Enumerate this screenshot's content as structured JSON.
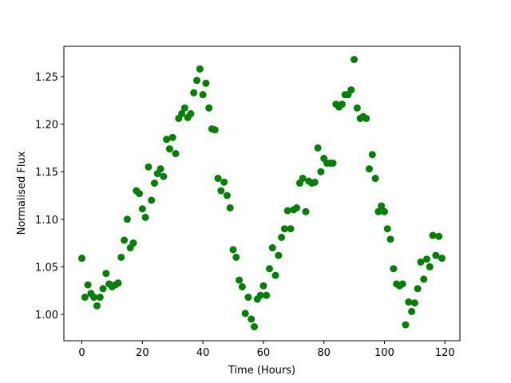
{
  "chart_data": {
    "type": "scatter",
    "xlabel": "Time (Hours)",
    "ylabel": "Normalised Flux",
    "color": "#008000",
    "x": [
      0,
      1,
      2,
      3,
      4,
      5,
      6,
      7,
      8,
      9,
      10,
      11,
      12,
      13,
      14,
      15,
      16,
      17,
      18,
      19,
      20,
      21,
      22,
      23,
      24,
      25,
      26,
      27,
      28,
      29,
      30,
      31,
      32,
      33,
      34,
      35,
      36,
      37,
      38,
      39,
      40,
      41,
      42,
      43,
      44,
      45,
      46,
      47,
      48,
      49,
      50,
      51,
      52,
      53,
      54,
      55,
      56,
      57,
      58,
      59,
      60,
      61,
      62,
      63,
      64,
      65,
      66,
      67,
      68,
      69,
      70,
      71,
      72,
      73,
      74,
      75,
      76,
      77,
      78,
      79,
      80,
      81,
      82,
      83,
      84,
      85,
      86,
      87,
      88,
      89,
      90,
      91,
      92,
      93,
      94,
      95,
      96,
      97,
      98,
      99,
      100,
      101,
      102,
      103,
      104,
      105,
      106,
      107,
      108,
      109,
      110,
      111,
      112,
      113,
      114,
      115,
      116,
      117,
      118,
      119
    ],
    "values": [
      1.059,
      1.018,
      1.031,
      1.022,
      1.018,
      1.009,
      1.018,
      1.027,
      1.043,
      1.032,
      1.029,
      1.031,
      1.033,
      1.06,
      1.078,
      1.1,
      1.07,
      1.075,
      1.13,
      1.127,
      1.111,
      1.102,
      1.155,
      1.12,
      1.138,
      1.148,
      1.153,
      1.145,
      1.184,
      1.174,
      1.186,
      1.169,
      1.206,
      1.211,
      1.217,
      1.207,
      1.211,
      1.233,
      1.246,
      1.258,
      1.231,
      1.243,
      1.217,
      1.195,
      1.194,
      1.143,
      1.13,
      1.139,
      1.125,
      1.112,
      1.068,
      1.06,
      1.036,
      1.029,
      1.001,
      1.018,
      0.995,
      0.987,
      1.016,
      1.02,
      1.03,
      1.02,
      1.048,
      1.07,
      1.041,
      1.062,
      1.081,
      1.09,
      1.109,
      1.09,
      1.11,
      1.112,
      1.138,
      1.143,
      1.108,
      1.14,
      1.138,
      1.139,
      1.175,
      1.15,
      1.164,
      1.159,
      1.159,
      1.159,
      1.221,
      1.218,
      1.221,
      1.231,
      1.231,
      1.236,
      1.268,
      1.217,
      1.206,
      1.208,
      1.206,
      1.153,
      1.168,
      1.143,
      1.108,
      1.114,
      1.108,
      1.09,
      1.079,
      1.048,
      1.032,
      1.03,
      1.032,
      0.989,
      1.013,
      1.003,
      1.012,
      1.027,
      1.055,
      1.037,
      1.058,
      1.05,
      1.083,
      1.062,
      1.082,
      1.059
    ],
    "xlim": [
      -5.95,
      124.95
    ],
    "xticks": [
      0,
      20,
      40,
      60,
      80,
      100,
      120
    ],
    "ylim": [
      0.9723,
      1.2819
    ],
    "yticks": [
      {
        "value": 1.0,
        "label": "1.00"
      },
      {
        "value": 1.05,
        "label": "1.05"
      },
      {
        "value": 1.1,
        "label": "1.10"
      },
      {
        "value": 1.15,
        "label": "1.15"
      },
      {
        "value": 1.2,
        "label": "1.20"
      },
      {
        "value": 1.25,
        "label": "1.25"
      }
    ]
  }
}
